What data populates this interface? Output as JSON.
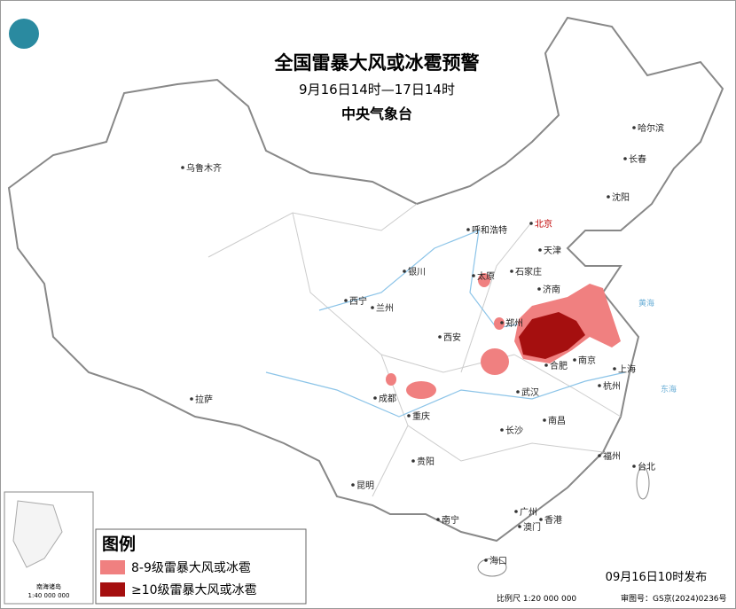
{
  "header": {
    "title": "全国雷暴大风或冰雹预警",
    "period": "9月16日14时—17日14时",
    "agency": "中央气象台"
  },
  "cities": [
    "乌鲁木齐",
    "呼和浩特",
    "北京",
    "天津",
    "石家庄",
    "太原",
    "银川",
    "济南",
    "西宁",
    "兰州",
    "郑州",
    "西安",
    "合肥",
    "南京",
    "上海",
    "杭州",
    "拉萨",
    "成都",
    "重庆",
    "武汉",
    "长沙",
    "南昌",
    "贵阳",
    "福州",
    "台北",
    "昆明",
    "南宁",
    "广州",
    "香港",
    "澳门",
    "海口",
    "哈尔滨",
    "长春",
    "沈阳"
  ],
  "seas": [
    "黄海",
    "东海"
  ],
  "legend": {
    "title": "图例",
    "items": [
      "8-9级雷暴大风或冰雹",
      "≥10级雷暴大风或冰雹"
    ]
  },
  "inset": {
    "label": "南海诸岛",
    "scale": "1:40 000 000"
  },
  "footer": {
    "issued": "09月16日10时发布",
    "scale": "比例尺 1:20 000 000",
    "approval": "审图号：GS京(2024)0236号"
  }
}
